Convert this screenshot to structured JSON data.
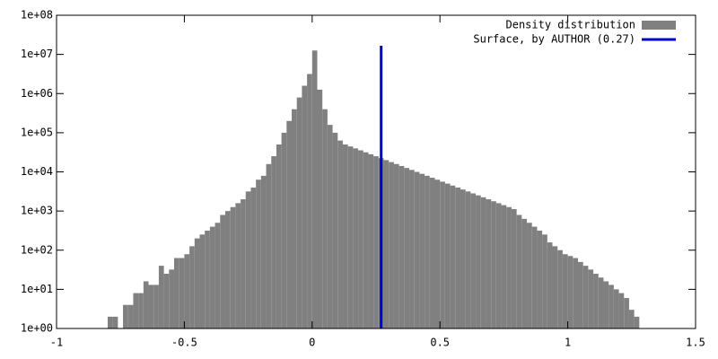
{
  "chart_data": {
    "type": "histogram",
    "hist": {
      "name": "Density distribution",
      "color": "#808080",
      "bins": [
        -0.8,
        -0.78,
        -0.76,
        -0.74,
        -0.72,
        -0.7,
        -0.68,
        -0.66,
        -0.64,
        -0.62,
        -0.6,
        -0.58,
        -0.56,
        -0.54,
        -0.52,
        -0.5,
        -0.48,
        -0.46,
        -0.44,
        -0.42,
        -0.4,
        -0.38,
        -0.36,
        -0.34,
        -0.32,
        -0.3,
        -0.28,
        -0.26,
        -0.24,
        -0.22,
        -0.2,
        -0.18,
        -0.16,
        -0.14,
        -0.12,
        -0.1,
        -0.08,
        -0.06,
        -0.04,
        -0.02,
        0,
        0.02,
        0.04,
        0.06,
        0.08,
        0.1,
        0.12,
        0.14,
        0.16,
        0.18,
        0.2,
        0.22,
        0.24,
        0.26,
        0.28,
        0.3,
        0.32,
        0.34,
        0.36,
        0.38,
        0.4,
        0.42,
        0.44,
        0.46,
        0.48,
        0.5,
        0.52,
        0.54,
        0.56,
        0.58,
        0.6,
        0.62,
        0.64,
        0.66,
        0.68,
        0.7,
        0.72,
        0.74,
        0.76,
        0.78,
        0.8,
        0.82,
        0.84,
        0.86,
        0.88,
        0.9,
        0.92,
        0.94,
        0.96,
        0.98,
        1,
        1.02,
        1.04,
        1.06,
        1.08,
        1.1,
        1.12,
        1.14,
        1.16,
        1.18,
        1.2,
        1.22,
        1.24,
        1.26,
        1.28
      ],
      "counts": [
        2,
        2,
        1,
        4,
        4,
        8,
        8,
        16,
        13,
        13,
        40,
        25,
        32,
        63,
        63,
        79,
        126,
        200,
        251,
        316,
        398,
        501,
        794,
        1000,
        1259,
        1585,
        1995,
        3162,
        3981,
        6310,
        7943,
        15849,
        25119,
        50119,
        100000,
        199526,
        398107,
        794328,
        1584893,
        3162278,
        12589254,
        1258925,
        398107,
        158489,
        100000,
        63096,
        50119,
        44668,
        39811,
        35481,
        31623,
        28184,
        25119,
        22387,
        19953,
        17783,
        15849,
        14125,
        12589,
        11220,
        10000,
        8913,
        7943,
        7079,
        6310,
        5623,
        5012,
        4467,
        3981,
        3548,
        3162,
        2818,
        2512,
        2239,
        1995,
        1778,
        1585,
        1413,
        1259,
        1122,
        794,
        631,
        501,
        398,
        316,
        251,
        158,
        126,
        100,
        79,
        71,
        63,
        50,
        40,
        32,
        25,
        20,
        16,
        13,
        10,
        8,
        6,
        3,
        2
      ]
    },
    "vline": {
      "name": "Surface, by AUTHOR (0.27)",
      "color": "#0000cc",
      "x": 0.27
    },
    "xlim": [
      -1,
      1.5
    ],
    "xticks": [
      -1,
      -0.5,
      0,
      0.5,
      1,
      1.5
    ],
    "ylim": [
      1,
      100000000
    ],
    "ylog": true,
    "yticks": [
      {
        "value": 1,
        "label": "1e+00"
      },
      {
        "value": 10,
        "label": "1e+01"
      },
      {
        "value": 100,
        "label": "1e+02"
      },
      {
        "value": 1000,
        "label": "1e+03"
      },
      {
        "value": 10000,
        "label": "1e+04"
      },
      {
        "value": 100000,
        "label": "1e+05"
      },
      {
        "value": 1000000,
        "label": "1e+06"
      },
      {
        "value": 10000000,
        "label": "1e+07"
      },
      {
        "value": 100000000,
        "label": "1e+08"
      }
    ],
    "legend": "top right"
  }
}
